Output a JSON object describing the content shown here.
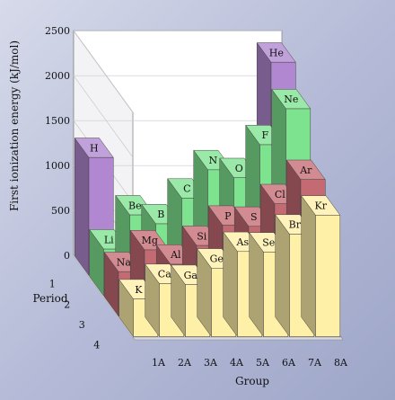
{
  "chart_data": {
    "type": "bar",
    "subtype": "3d-stacked-rows",
    "title": "",
    "ylabel": "First ionization energy (kJ/mol)",
    "xlabel": "Group",
    "zlabel": "Period",
    "ylim": [
      0,
      2500
    ],
    "yticks": [
      0,
      500,
      1000,
      1500,
      2000,
      2500
    ],
    "groups": [
      "1A",
      "2A",
      "3A",
      "4A",
      "5A",
      "6A",
      "7A",
      "8A"
    ],
    "periods": [
      "1",
      "2",
      "3",
      "4"
    ],
    "colors": {
      "period1": "#b087d0",
      "period2": "#7ee38f",
      "period3": "#c46a72",
      "period4": "#fff0a8"
    },
    "series": [
      {
        "name": "1",
        "values": [
          {
            "symbol": "H",
            "group": "1A",
            "value": 1312
          },
          {
            "symbol": "He",
            "group": "8A",
            "value": 2372
          }
        ]
      },
      {
        "name": "2",
        "values": [
          {
            "symbol": "Li",
            "group": "1A",
            "value": 520
          },
          {
            "symbol": "Be",
            "group": "2A",
            "value": 900
          },
          {
            "symbol": "B",
            "group": "3A",
            "value": 801
          },
          {
            "symbol": "C",
            "group": "4A",
            "value": 1086
          },
          {
            "symbol": "N",
            "group": "5A",
            "value": 1402
          },
          {
            "symbol": "O",
            "group": "6A",
            "value": 1314
          },
          {
            "symbol": "F",
            "group": "7A",
            "value": 1681
          },
          {
            "symbol": "Ne",
            "group": "8A",
            "value": 2081
          }
        ]
      },
      {
        "name": "3",
        "values": [
          {
            "symbol": "Na",
            "group": "1A",
            "value": 496
          },
          {
            "symbol": "Mg",
            "group": "2A",
            "value": 738
          },
          {
            "symbol": "Al",
            "group": "3A",
            "value": 578
          },
          {
            "symbol": "Si",
            "group": "4A",
            "value": 787
          },
          {
            "symbol": "P",
            "group": "5A",
            "value": 1012
          },
          {
            "symbol": "S",
            "group": "6A",
            "value": 1000
          },
          {
            "symbol": "Cl",
            "group": "7A",
            "value": 1251
          },
          {
            "symbol": "Ar",
            "group": "8A",
            "value": 1521
          }
        ]
      },
      {
        "name": "4",
        "values": [
          {
            "symbol": "K",
            "group": "1A",
            "value": 419
          },
          {
            "symbol": "Ca",
            "group": "2A",
            "value": 590
          },
          {
            "symbol": "Ga",
            "group": "3A",
            "value": 579
          },
          {
            "symbol": "Ge",
            "group": "4A",
            "value": 762
          },
          {
            "symbol": "As",
            "group": "5A",
            "value": 947
          },
          {
            "symbol": "Se",
            "group": "6A",
            "value": 941
          },
          {
            "symbol": "Br",
            "group": "7A",
            "value": 1140
          },
          {
            "symbol": "Kr",
            "group": "8A",
            "value": 1351
          }
        ]
      }
    ]
  }
}
